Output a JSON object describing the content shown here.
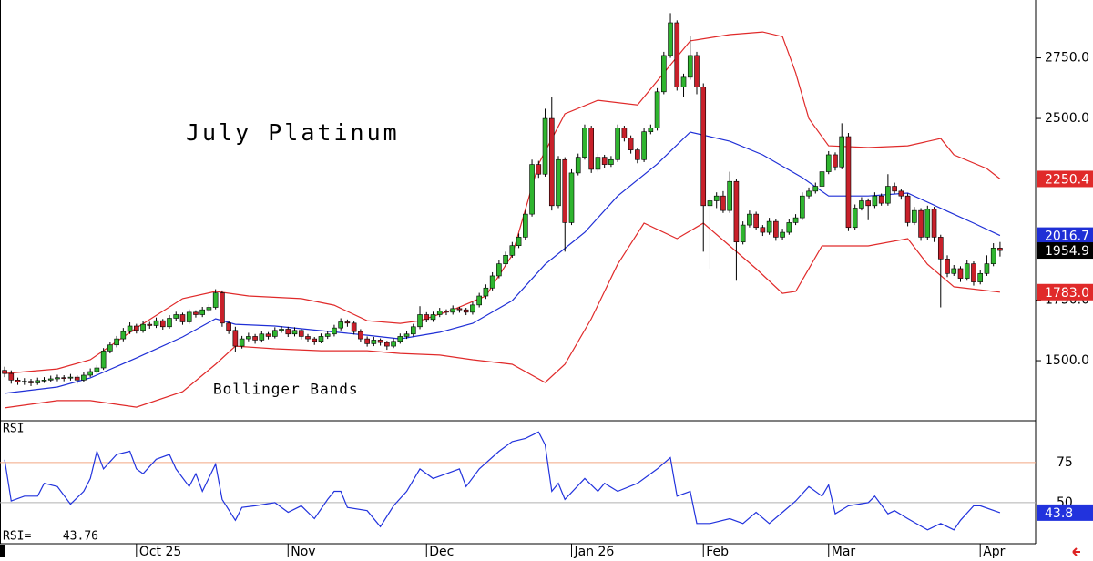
{
  "chart_data": {
    "type": "candlestick",
    "title": "July Platinum",
    "annotation": "Bollinger Bands",
    "up_color": "#2fb52f",
    "down_color": "#c8202a",
    "xlim": [
      -0.7,
      156.4
    ],
    "xticks": [
      {
        "value": 20,
        "label": "Oct 25"
      },
      {
        "value": 43,
        "label": "Nov"
      },
      {
        "value": 64,
        "label": "Dec"
      },
      {
        "value": 86,
        "label": "Jan 26"
      },
      {
        "value": 106,
        "label": "Feb"
      },
      {
        "value": 125,
        "label": "Mar"
      },
      {
        "value": 148,
        "label": "Apr"
      }
    ],
    "ylim": [
      1252,
      2989
    ],
    "yticks": [
      {
        "value": 1500,
        "label": "1500.0"
      },
      {
        "value": 1750,
        "label": "1750.0"
      },
      {
        "value": 2500,
        "label": "2500.0"
      },
      {
        "value": 2750,
        "label": "2750.0"
      }
    ],
    "ohlc": [
      [
        1460,
        1475,
        1432,
        1447
      ],
      [
        1447,
        1460,
        1405,
        1420
      ],
      [
        1420,
        1430,
        1400,
        1412
      ],
      [
        1412,
        1428,
        1400,
        1415
      ],
      [
        1415,
        1425,
        1395,
        1408
      ],
      [
        1408,
        1430,
        1400,
        1418
      ],
      [
        1418,
        1432,
        1408,
        1420
      ],
      [
        1420,
        1438,
        1410,
        1425
      ],
      [
        1425,
        1442,
        1415,
        1430
      ],
      [
        1430,
        1440,
        1415,
        1428
      ],
      [
        1428,
        1445,
        1418,
        1432
      ],
      [
        1432,
        1440,
        1405,
        1420
      ],
      [
        1420,
        1452,
        1412,
        1440
      ],
      [
        1440,
        1468,
        1432,
        1455
      ],
      [
        1455,
        1482,
        1445,
        1470
      ],
      [
        1470,
        1552,
        1462,
        1540
      ],
      [
        1540,
        1578,
        1530,
        1565
      ],
      [
        1565,
        1602,
        1555,
        1590
      ],
      [
        1590,
        1635,
        1580,
        1620
      ],
      [
        1620,
        1658,
        1610,
        1643
      ],
      [
        1643,
        1652,
        1612,
        1625
      ],
      [
        1625,
        1662,
        1615,
        1650
      ],
      [
        1650,
        1660,
        1632,
        1645
      ],
      [
        1645,
        1678,
        1635,
        1665
      ],
      [
        1665,
        1672,
        1628,
        1640
      ],
      [
        1640,
        1688,
        1632,
        1675
      ],
      [
        1675,
        1702,
        1665,
        1690
      ],
      [
        1690,
        1698,
        1648,
        1660
      ],
      [
        1660,
        1712,
        1652,
        1700
      ],
      [
        1700,
        1708,
        1678,
        1690
      ],
      [
        1690,
        1722,
        1680,
        1710
      ],
      [
        1710,
        1732,
        1700,
        1720
      ],
      [
        1720,
        1795,
        1712,
        1780
      ],
      [
        1780,
        1790,
        1640,
        1655
      ],
      [
        1655,
        1665,
        1610,
        1625
      ],
      [
        1625,
        1640,
        1535,
        1560
      ],
      [
        1560,
        1602,
        1550,
        1590
      ],
      [
        1590,
        1615,
        1580,
        1600
      ],
      [
        1600,
        1610,
        1570,
        1585
      ],
      [
        1585,
        1622,
        1575,
        1610
      ],
      [
        1610,
        1618,
        1588,
        1600
      ],
      [
        1600,
        1638,
        1592,
        1625
      ],
      [
        1625,
        1642,
        1615,
        1630
      ],
      [
        1630,
        1640,
        1598,
        1610
      ],
      [
        1610,
        1638,
        1600,
        1625
      ],
      [
        1625,
        1632,
        1588,
        1600
      ],
      [
        1600,
        1610,
        1578,
        1590
      ],
      [
        1590,
        1598,
        1565,
        1580
      ],
      [
        1580,
        1612,
        1572,
        1600
      ],
      [
        1600,
        1622,
        1590,
        1610
      ],
      [
        1610,
        1648,
        1600,
        1635
      ],
      [
        1635,
        1675,
        1625,
        1660
      ],
      [
        1660,
        1670,
        1640,
        1655
      ],
      [
        1655,
        1662,
        1608,
        1620
      ],
      [
        1620,
        1630,
        1578,
        1590
      ],
      [
        1590,
        1600,
        1558,
        1570
      ],
      [
        1570,
        1598,
        1560,
        1585
      ],
      [
        1585,
        1592,
        1562,
        1575
      ],
      [
        1575,
        1582,
        1545,
        1560
      ],
      [
        1560,
        1592,
        1552,
        1580
      ],
      [
        1580,
        1612,
        1570,
        1600
      ],
      [
        1600,
        1622,
        1590,
        1610
      ],
      [
        1610,
        1652,
        1600,
        1640
      ],
      [
        1640,
        1725,
        1630,
        1690
      ],
      [
        1690,
        1700,
        1658,
        1670
      ],
      [
        1670,
        1702,
        1660,
        1690
      ],
      [
        1690,
        1718,
        1680,
        1705
      ],
      [
        1705,
        1712,
        1688,
        1700
      ],
      [
        1700,
        1728,
        1690,
        1715
      ],
      [
        1715,
        1722,
        1698,
        1710
      ],
      [
        1710,
        1718,
        1688,
        1700
      ],
      [
        1700,
        1742,
        1690,
        1730
      ],
      [
        1730,
        1780,
        1720,
        1767
      ],
      [
        1767,
        1815,
        1755,
        1800
      ],
      [
        1800,
        1865,
        1790,
        1850
      ],
      [
        1850,
        1915,
        1840,
        1900
      ],
      [
        1900,
        1950,
        1890,
        1935
      ],
      [
        1935,
        1990,
        1925,
        1975
      ],
      [
        1975,
        2025,
        1965,
        2010
      ],
      [
        2010,
        2120,
        2000,
        2105
      ],
      [
        2105,
        2330,
        2095,
        2310
      ],
      [
        2310,
        2325,
        2255,
        2270
      ],
      [
        2270,
        2540,
        2260,
        2500
      ],
      [
        2500,
        2590,
        2120,
        2140
      ],
      [
        2140,
        2345,
        2130,
        2330
      ],
      [
        2330,
        2340,
        1950,
        2070
      ],
      [
        2070,
        2290,
        2060,
        2275
      ],
      [
        2275,
        2355,
        2265,
        2340
      ],
      [
        2340,
        2475,
        2330,
        2460
      ],
      [
        2460,
        2470,
        2275,
        2290
      ],
      [
        2290,
        2355,
        2280,
        2340
      ],
      [
        2340,
        2350,
        2295,
        2310
      ],
      [
        2310,
        2345,
        2300,
        2330
      ],
      [
        2330,
        2475,
        2320,
        2460
      ],
      [
        2460,
        2470,
        2405,
        2420
      ],
      [
        2420,
        2430,
        2355,
        2370
      ],
      [
        2370,
        2380,
        2315,
        2330
      ],
      [
        2330,
        2460,
        2320,
        2445
      ],
      [
        2445,
        2475,
        2435,
        2460
      ],
      [
        2460,
        2625,
        2450,
        2610
      ],
      [
        2610,
        2775,
        2600,
        2760
      ],
      [
        2760,
        2935,
        2750,
        2895
      ],
      [
        2895,
        2905,
        2615,
        2630
      ],
      [
        2630,
        2685,
        2590,
        2670
      ],
      [
        2670,
        2840,
        2660,
        2760
      ],
      [
        2760,
        2775,
        2600,
        2630
      ],
      [
        2630,
        2645,
        1950,
        2140
      ],
      [
        2140,
        2175,
        1880,
        2160
      ],
      [
        2160,
        2195,
        2130,
        2180
      ],
      [
        2180,
        2200,
        2110,
        2120
      ],
      [
        2120,
        2280,
        2110,
        2240
      ],
      [
        2240,
        2250,
        1830,
        1990
      ],
      [
        1990,
        2075,
        1980,
        2060
      ],
      [
        2060,
        2120,
        2050,
        2105
      ],
      [
        2105,
        2115,
        2040,
        2050
      ],
      [
        2050,
        2060,
        2015,
        2030
      ],
      [
        2030,
        2090,
        2020,
        2075
      ],
      [
        2075,
        2085,
        1995,
        2010
      ],
      [
        2010,
        2045,
        2000,
        2030
      ],
      [
        2030,
        2085,
        2020,
        2070
      ],
      [
        2070,
        2105,
        2060,
        2090
      ],
      [
        2090,
        2195,
        2080,
        2180
      ],
      [
        2180,
        2215,
        2170,
        2200
      ],
      [
        2200,
        2235,
        2190,
        2220
      ],
      [
        2220,
        2295,
        2210,
        2280
      ],
      [
        2280,
        2365,
        2270,
        2350
      ],
      [
        2350,
        2360,
        2285,
        2300
      ],
      [
        2300,
        2480,
        2290,
        2425
      ],
      [
        2425,
        2440,
        2035,
        2050
      ],
      [
        2050,
        2145,
        2040,
        2130
      ],
      [
        2130,
        2175,
        2120,
        2160
      ],
      [
        2160,
        2170,
        2080,
        2140
      ],
      [
        2140,
        2195,
        2130,
        2180
      ],
      [
        2180,
        2190,
        2140,
        2150
      ],
      [
        2150,
        2270,
        2140,
        2220
      ],
      [
        2220,
        2235,
        2190,
        2200
      ],
      [
        2200,
        2210,
        2165,
        2180
      ],
      [
        2180,
        2190,
        2055,
        2070
      ],
      [
        2070,
        2135,
        2060,
        2120
      ],
      [
        2120,
        2130,
        1995,
        2010
      ],
      [
        2010,
        2140,
        2000,
        2125
      ],
      [
        2125,
        2135,
        1990,
        2010
      ],
      [
        2010,
        2020,
        1720,
        1920
      ],
      [
        1920,
        1935,
        1845,
        1860
      ],
      [
        1860,
        1895,
        1850,
        1880
      ],
      [
        1880,
        1890,
        1825,
        1840
      ],
      [
        1840,
        1915,
        1830,
        1900
      ],
      [
        1900,
        1910,
        1810,
        1825
      ],
      [
        1825,
        1875,
        1815,
        1860
      ],
      [
        1860,
        1935,
        1850,
        1900
      ],
      [
        1900,
        1985,
        1890,
        1965
      ],
      [
        1965,
        1990,
        1930,
        1954.9
      ]
    ],
    "bands": [
      {
        "color": "#e02a2a",
        "x": [
          0,
          8,
          13,
          20,
          27,
          32,
          37,
          45,
          50,
          55,
          60,
          63,
          68,
          73,
          77,
          81,
          85,
          90,
          96,
          100,
          104,
          110,
          115,
          118,
          120,
          122,
          125,
          131,
          137,
          142,
          144,
          149,
          151
        ],
        "values": [
          1447,
          1466,
          1504,
          1635,
          1756,
          1786,
          1767,
          1756,
          1729,
          1665,
          1654,
          1665,
          1710,
          1767,
          1936,
          2312,
          2519,
          2575,
          2556,
          2688,
          2820,
          2846,
          2857,
          2838,
          2688,
          2500,
          2387,
          2380,
          2387,
          2417,
          2350,
          2293,
          2250.4
        ]
      },
      {
        "color": "#1f2fd6",
        "x": [
          0,
          8,
          13,
          20,
          27,
          32,
          35,
          41,
          48,
          55,
          60,
          66,
          71,
          77,
          82,
          88,
          93,
          99,
          104,
          110,
          115,
          121,
          125,
          131,
          137,
          143,
          147,
          151
        ],
        "values": [
          1365,
          1391,
          1429,
          1511,
          1598,
          1673,
          1650,
          1643,
          1624,
          1605,
          1590,
          1617,
          1654,
          1748,
          1898,
          2030,
          2180,
          2312,
          2444,
          2406,
          2350,
          2256,
          2180,
          2180,
          2192,
          2117,
          2068,
          2016.7
        ]
      },
      {
        "color": "#e02a2a",
        "x": [
          0,
          8,
          13,
          20,
          27,
          32,
          35,
          41,
          48,
          55,
          60,
          66,
          71,
          77,
          82,
          85,
          89,
          93,
          97,
          102,
          106,
          110,
          114,
          118,
          120,
          124,
          131,
          137,
          140,
          144,
          151
        ],
        "values": [
          1305,
          1335,
          1335,
          1308,
          1372,
          1485,
          1560,
          1549,
          1541,
          1541,
          1530,
          1523,
          1504,
          1485,
          1410,
          1485,
          1673,
          1898,
          2068,
          2004,
          2068,
          1974,
          1880,
          1778,
          1786,
          1974,
          1974,
          2004,
          1898,
          1805,
          1783.0
        ],
        "last_label": "1783.0"
      }
    ],
    "last_box_color": "#000000",
    "rsi": {
      "type": "line",
      "label": "RSI",
      "readout_label": "RSI=",
      "color": "#2233dd",
      "ylim": [
        24.4,
        101
      ],
      "yticks": [
        50,
        75
      ],
      "ytick_colors": [
        "#b0b0b0",
        "#f2a883"
      ],
      "last_label": "43.8",
      "x": [
        0,
        1,
        3,
        5,
        6,
        8,
        10,
        12,
        13,
        14,
        15,
        17,
        19,
        20,
        21,
        23,
        25,
        26,
        28,
        29,
        30,
        32,
        33,
        35,
        36,
        38,
        41,
        43,
        45,
        47,
        49,
        50,
        51,
        52,
        55,
        57,
        59,
        61,
        63,
        65,
        67,
        69,
        70,
        72,
        75,
        77,
        79,
        81,
        82,
        83,
        84,
        85,
        88,
        90,
        91,
        93,
        96,
        99,
        101,
        102,
        104,
        105,
        107,
        110,
        112,
        114,
        116,
        118,
        120,
        122,
        124,
        125,
        126,
        128,
        131,
        132,
        134,
        135,
        137,
        140,
        142,
        144,
        145,
        147,
        148,
        151
      ],
      "values": [
        76.7,
        51,
        54,
        54,
        62,
        60,
        49,
        57,
        65,
        82,
        71,
        80,
        82,
        71,
        68,
        77,
        80,
        71,
        60,
        68,
        57,
        74,
        52,
        39,
        47,
        48,
        50,
        44,
        48,
        40,
        52,
        57,
        57,
        47,
        45,
        35,
        48,
        57,
        71,
        65,
        68,
        71,
        60,
        71,
        82,
        88,
        90,
        94,
        86,
        57,
        62,
        52,
        65,
        57,
        62,
        57,
        62,
        71,
        78,
        54,
        57,
        37,
        37,
        40,
        37,
        44,
        37,
        44,
        51,
        60,
        54,
        61,
        43,
        48,
        50,
        54,
        43,
        45,
        40,
        33,
        37,
        33,
        39,
        48,
        48,
        43.76
      ]
    }
  }
}
